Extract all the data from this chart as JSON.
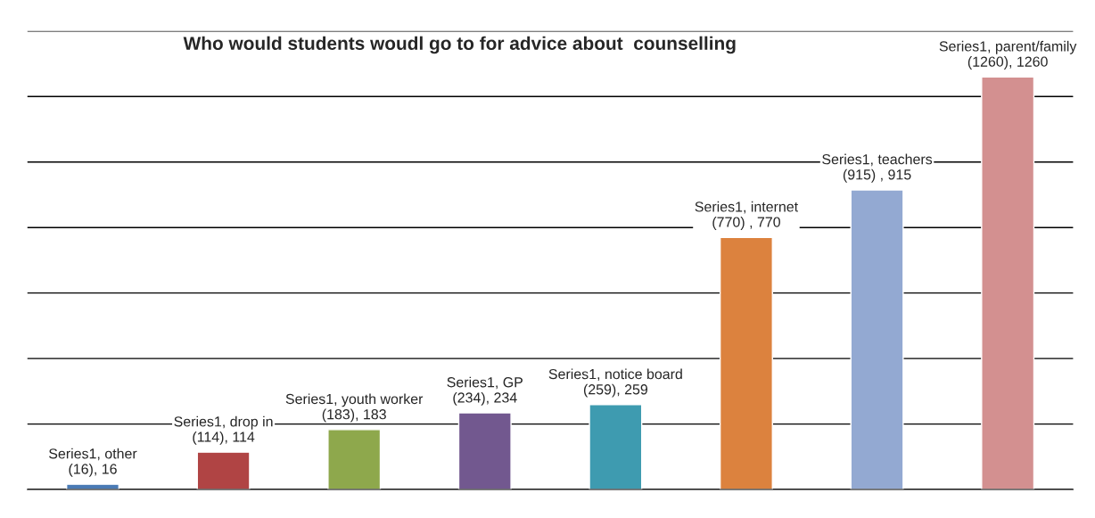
{
  "chart_data": {
    "type": "bar",
    "title": "Who would students woudl go to for advice about  counselling",
    "categories": [
      null,
      null,
      null,
      null,
      null,
      null,
      null,
      null
    ],
    "values": [
      16,
      114,
      183,
      234,
      259,
      770,
      915,
      1260
    ],
    "colors": [
      "#4a7ab5",
      "#b04444",
      "#8ea84c",
      "#72588f",
      "#3e9bb0",
      "#dc823e",
      "#93a9d2",
      "#d39090"
    ],
    "value_labels": [
      "Series1, other (16), 16",
      "Series1, drop in (114), 114",
      "Series1, youth worker (183), 183",
      "Series1, GP (234), 234",
      "Series1, notice board (259), 259",
      "Series1, internet (770) , 770",
      "Series1, teachers (915) , 915",
      "Series1, parent/family (1260), 1260"
    ],
    "ylim": [
      0,
      1400
    ],
    "yticks": [
      {
        "value": 0,
        "label": null
      },
      {
        "value": 200,
        "label": null
      },
      {
        "value": 400,
        "label": null
      },
      {
        "value": 600,
        "label": null
      },
      {
        "value": 800,
        "label": null
      },
      {
        "value": 1000,
        "label": null
      },
      {
        "value": 1200,
        "label": null
      },
      {
        "value": 1400,
        "label": null
      }
    ],
    "grid": "y",
    "legend": false
  }
}
